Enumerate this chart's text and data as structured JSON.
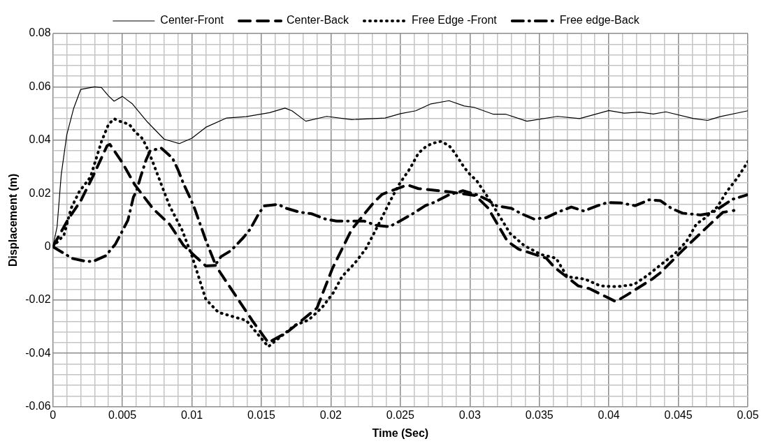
{
  "chart_data": {
    "type": "line",
    "xlabel": "Time (Sec)",
    "ylabel": "Displacement (m)",
    "legend": "top",
    "grid": true,
    "marker": "none",
    "xlim": [
      0,
      0.05
    ],
    "ylim": [
      -0.06,
      0.08
    ],
    "xticks": [
      0,
      {
        "value": 0.001,
        "label": null
      },
      {
        "value": 0.002,
        "label": null
      },
      {
        "value": 0.003,
        "label": null
      },
      {
        "value": 0.004,
        "label": null
      },
      0.005,
      {
        "value": 0.006,
        "label": null
      },
      {
        "value": 0.007,
        "label": null
      },
      {
        "value": 0.008,
        "label": null
      },
      {
        "value": 0.009,
        "label": null
      },
      0.01,
      {
        "value": 0.011,
        "label": null
      },
      {
        "value": 0.012,
        "label": null
      },
      {
        "value": 0.013,
        "label": null
      },
      {
        "value": 0.014,
        "label": null
      },
      0.015,
      {
        "value": 0.016,
        "label": null
      },
      {
        "value": 0.017,
        "label": null
      },
      {
        "value": 0.018,
        "label": null
      },
      {
        "value": 0.019,
        "label": null
      },
      0.02,
      {
        "value": 0.021,
        "label": null
      },
      {
        "value": 0.022,
        "label": null
      },
      {
        "value": 0.023,
        "label": null
      },
      {
        "value": 0.024,
        "label": null
      },
      0.025,
      {
        "value": 0.026,
        "label": null
      },
      {
        "value": 0.027,
        "label": null
      },
      {
        "value": 0.028,
        "label": null
      },
      {
        "value": 0.029,
        "label": null
      },
      0.03,
      {
        "value": 0.031,
        "label": null
      },
      {
        "value": 0.032,
        "label": null
      },
      {
        "value": 0.033,
        "label": null
      },
      {
        "value": 0.034,
        "label": null
      },
      0.035,
      {
        "value": 0.036,
        "label": null
      },
      {
        "value": 0.037,
        "label": null
      },
      {
        "value": 0.038,
        "label": null
      },
      {
        "value": 0.039,
        "label": null
      },
      0.04,
      {
        "value": 0.041,
        "label": null
      },
      {
        "value": 0.042,
        "label": null
      },
      {
        "value": 0.043,
        "label": null
      },
      {
        "value": 0.044,
        "label": null
      },
      0.045,
      {
        "value": 0.046,
        "label": null
      },
      {
        "value": 0.047,
        "label": null
      },
      {
        "value": 0.048,
        "label": null
      },
      {
        "value": 0.049,
        "label": null
      },
      0.05
    ],
    "yticks": [
      -0.06,
      {
        "value": -0.056,
        "label": null
      },
      {
        "value": -0.052,
        "label": null
      },
      {
        "value": -0.048,
        "label": null
      },
      {
        "value": -0.044,
        "label": null
      },
      -0.04,
      {
        "value": -0.036,
        "label": null
      },
      {
        "value": -0.032,
        "label": null
      },
      {
        "value": -0.028,
        "label": null
      },
      {
        "value": -0.024,
        "label": null
      },
      -0.02,
      {
        "value": -0.016,
        "label": null
      },
      {
        "value": -0.012,
        "label": null
      },
      {
        "value": -0.008,
        "label": null
      },
      {
        "value": -0.004,
        "label": null
      },
      0,
      {
        "value": 0.004,
        "label": null
      },
      {
        "value": 0.008,
        "label": null
      },
      {
        "value": 0.012,
        "label": null
      },
      {
        "value": 0.016,
        "label": null
      },
      0.02,
      {
        "value": 0.024,
        "label": null
      },
      {
        "value": 0.028,
        "label": null
      },
      {
        "value": 0.032,
        "label": null
      },
      {
        "value": 0.036,
        "label": null
      },
      0.04,
      {
        "value": 0.044,
        "label": null
      },
      {
        "value": 0.048,
        "label": null
      },
      {
        "value": 0.052,
        "label": null
      },
      {
        "value": 0.056,
        "label": null
      },
      0.06,
      {
        "value": 0.064,
        "label": null
      },
      {
        "value": 0.068,
        "label": null
      },
      {
        "value": 0.072,
        "label": null
      },
      {
        "value": 0.076,
        "label": null
      },
      0.08
    ],
    "series": [
      {
        "name": "Center-Front",
        "color": "#000000",
        "line_style": "solid",
        "x": [
          0,
          0.0003,
          0.0006,
          0.001,
          0.0015,
          0.002,
          0.003,
          0.0035,
          0.004,
          0.0044,
          0.005,
          0.0057,
          0.0068,
          0.008,
          0.0091,
          0.01,
          0.011,
          0.0125,
          0.0139,
          0.0156,
          0.0167,
          0.0172,
          0.0182,
          0.0197,
          0.0215,
          0.0239,
          0.025,
          0.0261,
          0.0272,
          0.0285,
          0.0296,
          0.0303,
          0.0317,
          0.0326,
          0.0341,
          0.0363,
          0.0379,
          0.04,
          0.0411,
          0.0422,
          0.0432,
          0.0441,
          0.0461,
          0.0471,
          0.048,
          0.05
        ],
        "values": [
          0,
          0.0074,
          0.027,
          0.042,
          0.052,
          0.059,
          0.06,
          0.0597,
          0.0566,
          0.0546,
          0.0564,
          0.0537,
          0.0468,
          0.0404,
          0.0387,
          0.0407,
          0.0448,
          0.0483,
          0.0488,
          0.0503,
          0.052,
          0.051,
          0.0471,
          0.0489,
          0.0477,
          0.0483,
          0.0499,
          0.051,
          0.0536,
          0.0548,
          0.0528,
          0.0523,
          0.0497,
          0.0497,
          0.0471,
          0.0489,
          0.0481,
          0.0511,
          0.0501,
          0.0505,
          0.0498,
          0.0506,
          0.0481,
          0.0474,
          0.0488,
          0.051
        ]
      },
      {
        "name": "Center-Back",
        "color": "#000000",
        "line_style": "dashed",
        "x": [
          0,
          0.0011,
          0.002,
          0.0029,
          0.0039,
          0.0041,
          0.005,
          0.0059,
          0.0072,
          0.0084,
          0.0094,
          0.0102,
          0.011,
          0.0117,
          0.0125,
          0.0144,
          0.0155,
          0.0164,
          0.0169,
          0.019,
          0.0201,
          0.0215,
          0.0231,
          0.0237,
          0.0255,
          0.0263,
          0.0285,
          0.0304,
          0.0313,
          0.0327,
          0.0335,
          0.0355,
          0.0361,
          0.0378,
          0.0386,
          0.0405,
          0.0413,
          0.0431,
          0.0437,
          0.0453,
          0.046,
          0.0476,
          0.0482,
          0.049
        ],
        "values": [
          0,
          0.0103,
          0.0172,
          0.0266,
          0.0379,
          0.0384,
          0.0315,
          0.0232,
          0.0143,
          0.0084,
          0.0005,
          -0.0034,
          -0.0072,
          -0.007,
          -0.0133,
          -0.0281,
          -0.036,
          -0.0334,
          -0.0319,
          -0.023,
          -0.0083,
          0.0065,
          0.0167,
          0.0197,
          0.0232,
          0.0218,
          0.0206,
          0.0192,
          0.0146,
          0.0021,
          -0.0009,
          -0.0043,
          -0.0078,
          -0.0147,
          -0.0157,
          -0.0206,
          -0.0181,
          -0.0122,
          -0.0098,
          -0.0014,
          0.0021,
          0.01,
          0.0129,
          0.0136
        ]
      },
      {
        "name": "Free Edge -Front",
        "color": "#000000",
        "line_style": "dotted",
        "x": [
          0,
          0.0008,
          0.0013,
          0.0019,
          0.0027,
          0.0035,
          0.004,
          0.0044,
          0.0049,
          0.0055,
          0.0059,
          0.0064,
          0.0067,
          0.0072,
          0.0079,
          0.0084,
          0.0093,
          0.01,
          0.0104,
          0.011,
          0.0119,
          0.0132,
          0.0139,
          0.0155,
          0.0174,
          0.0184,
          0.0194,
          0.0202,
          0.0208,
          0.0217,
          0.0225,
          0.0231,
          0.0237,
          0.0243,
          0.0249,
          0.0257,
          0.0263,
          0.0268,
          0.0273,
          0.0279,
          0.0285,
          0.0289,
          0.0296,
          0.03,
          0.0305,
          0.0312,
          0.0322,
          0.0329,
          0.0339,
          0.0351,
          0.0362,
          0.037,
          0.0383,
          0.0394,
          0.0406,
          0.0418,
          0.0428,
          0.0438,
          0.0448,
          0.0456,
          0.0463,
          0.0469,
          0.0478,
          0.0485,
          0.0493,
          0.05
        ],
        "values": [
          0,
          0.0044,
          0.0143,
          0.0207,
          0.0261,
          0.0395,
          0.0459,
          0.048,
          0.0469,
          0.0459,
          0.0432,
          0.0408,
          0.038,
          0.0316,
          0.022,
          0.0153,
          0.0062,
          -0.0034,
          -0.0099,
          -0.0197,
          -0.0246,
          -0.0266,
          -0.0276,
          -0.0375,
          -0.0295,
          -0.0275,
          -0.0226,
          -0.0171,
          -0.0112,
          -0.0063,
          -0.0009,
          0.005,
          0.0112,
          0.0175,
          0.0233,
          0.0294,
          0.0351,
          0.0374,
          0.0388,
          0.0395,
          0.038,
          0.0353,
          0.0297,
          0.0272,
          0.0247,
          0.0193,
          0.0109,
          0.005,
          0.0005,
          -0.0029,
          -0.0043,
          -0.0112,
          -0.0122,
          -0.0147,
          -0.015,
          -0.0142,
          -0.0107,
          -0.0065,
          -0.0024,
          0.0021,
          0.0085,
          0.0107,
          0.0149,
          0.0208,
          0.0262,
          0.0319
        ]
      },
      {
        "name": "Free edge-Back",
        "color": "#000000",
        "line_style": "dashdot",
        "x": [
          0,
          0.0014,
          0.0024,
          0.0029,
          0.0038,
          0.0045,
          0.0049,
          0.0054,
          0.0058,
          0.006,
          0.0063,
          0.0067,
          0.007,
          0.0078,
          0.0086,
          0.009,
          0.0094,
          0.0099,
          0.0102,
          0.0106,
          0.011,
          0.0113,
          0.0117,
          0.0121,
          0.0128,
          0.0137,
          0.0142,
          0.0148,
          0.0152,
          0.0162,
          0.0168,
          0.0178,
          0.0186,
          0.0196,
          0.0204,
          0.0215,
          0.0224,
          0.0233,
          0.0242,
          0.0251,
          0.0259,
          0.0268,
          0.0275,
          0.0285,
          0.0295,
          0.0305,
          0.0313,
          0.0319,
          0.033,
          0.0337,
          0.0346,
          0.0355,
          0.0363,
          0.0373,
          0.0382,
          0.0392,
          0.0399,
          0.0409,
          0.0419,
          0.0429,
          0.0437,
          0.0445,
          0.0453,
          0.0466,
          0.0474,
          0.0489,
          0.05
        ],
        "values": [
          0,
          -0.0044,
          -0.0055,
          -0.0055,
          -0.0034,
          0.001,
          0.0049,
          0.01,
          0.0187,
          0.0207,
          0.026,
          0.0325,
          0.036,
          0.037,
          0.0333,
          0.0289,
          0.0236,
          0.018,
          0.0143,
          0.0084,
          0.0025,
          -0.0015,
          -0.0067,
          -0.0037,
          -0.0015,
          0.0034,
          0.0066,
          0.0123,
          0.0153,
          0.0159,
          0.0144,
          0.0129,
          0.0124,
          0.0104,
          0.0096,
          0.0096,
          0.0096,
          0.008,
          0.0075,
          0.01,
          0.0124,
          0.0154,
          0.0168,
          0.0195,
          0.021,
          0.0195,
          0.0175,
          0.0154,
          0.0144,
          0.0124,
          0.0104,
          0.0109,
          0.0129,
          0.0149,
          0.0134,
          0.0154,
          0.0166,
          0.0164,
          0.0154,
          0.0176,
          0.0173,
          0.0144,
          0.0126,
          0.0119,
          0.0126,
          0.0178,
          0.0195
        ]
      }
    ]
  }
}
